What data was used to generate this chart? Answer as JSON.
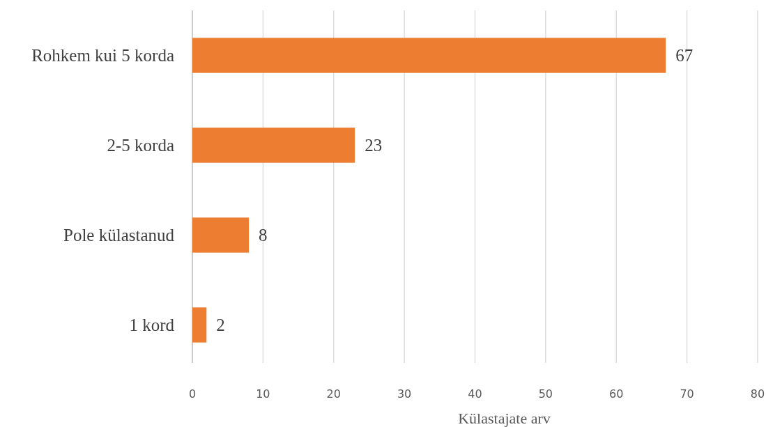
{
  "chart_data": {
    "type": "bar",
    "orientation": "horizontal",
    "xlabel": "Külastajate arv",
    "categories": [
      "Rohkem kui 5 korda",
      "2-5 korda",
      "Pole külastanud",
      "1 kord"
    ],
    "values": [
      67,
      23,
      8,
      2
    ],
    "color": "#ed7d31",
    "xlim": [
      0,
      80
    ],
    "xticks": [
      0,
      10,
      20,
      30,
      40,
      50,
      60,
      70,
      80
    ],
    "grid": "x",
    "data_labels": true
  }
}
